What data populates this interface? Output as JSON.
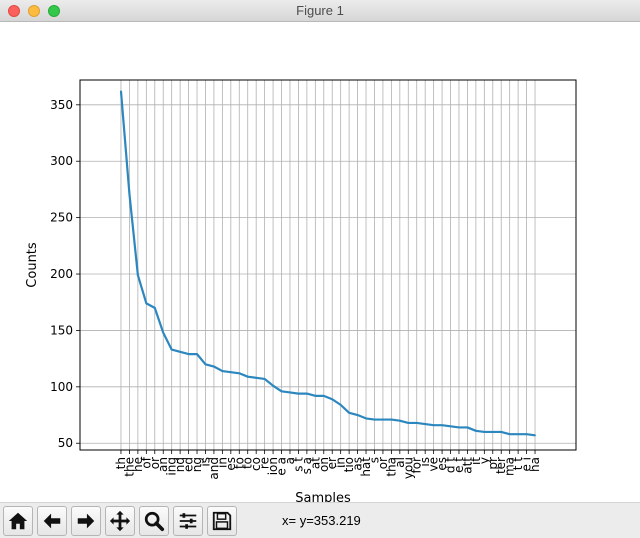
{
  "window": {
    "title": "Figure 1"
  },
  "toolbar": {
    "buttons": [
      {
        "name": "home",
        "icon": "home-icon"
      },
      {
        "name": "back",
        "icon": "arrow-left-icon"
      },
      {
        "name": "forward",
        "icon": "arrow-right-icon"
      },
      {
        "name": "pan",
        "icon": "move-icon"
      },
      {
        "name": "zoom",
        "icon": "zoom-icon"
      },
      {
        "name": "subplots",
        "icon": "sliders-icon"
      },
      {
        "name": "save",
        "icon": "save-icon"
      }
    ],
    "coordinates": "x= y=353.219"
  },
  "chart_data": {
    "type": "line",
    "title": "",
    "xlabel": "Samples",
    "ylabel": "Counts",
    "ylim": [
      44,
      372
    ],
    "yticks": [
      50,
      100,
      150,
      200,
      250,
      300,
      350
    ],
    "grid": true,
    "color": "#2c87bf",
    "categories": [
      "th",
      "the",
      "he",
      "of",
      "or",
      "an",
      "ing",
      "nd",
      "ed",
      "ng",
      "is",
      "and",
      "in",
      "es",
      "to",
      "to",
      "co",
      "re",
      "ion",
      "e a",
      "a",
      "s t",
      "s a",
      "at",
      "on",
      "er",
      "in",
      "tio",
      "as",
      "hat",
      "s",
      "or",
      "tha",
      "al",
      "you",
      "for",
      "is",
      "ve",
      "es",
      "d t",
      "e t",
      "att",
      "it",
      "y",
      "pr",
      "ter",
      "ma",
      "t t",
      "e i",
      "ha"
    ],
    "values": [
      362,
      271,
      199,
      174,
      170,
      148,
      133,
      131,
      129,
      129,
      120,
      118,
      114,
      113,
      112,
      109,
      108,
      107,
      101,
      96,
      95,
      94,
      94,
      92,
      92,
      89,
      84,
      77,
      75,
      72,
      71,
      71,
      71,
      70,
      68,
      68,
      67,
      66,
      66,
      65,
      64,
      64,
      61,
      60,
      60,
      60,
      58,
      58,
      58,
      57
    ]
  }
}
